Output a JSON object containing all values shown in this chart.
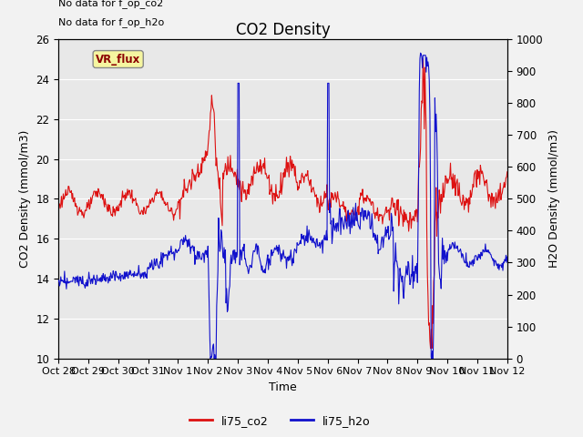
{
  "title": "CO2 Density",
  "xlabel": "Time",
  "ylabel_left": "CO2 Density (mmol/m3)",
  "ylabel_right": "H2O Density (mmol/m3)",
  "ylim_left": [
    10,
    26
  ],
  "ylim_right": [
    0,
    1000
  ],
  "yticks_left": [
    10,
    12,
    14,
    16,
    18,
    20,
    22,
    24,
    26
  ],
  "yticks_right": [
    0,
    100,
    200,
    300,
    400,
    500,
    600,
    700,
    800,
    900,
    1000
  ],
  "annotations": [
    "No data for f_op_co2",
    "No data for f_op_h2o"
  ],
  "vr_flux_label": "VR_flux",
  "legend": [
    {
      "label": "li75_co2",
      "color": "#dd1111"
    },
    {
      "label": "li75_h2o",
      "color": "#1111cc"
    }
  ],
  "background_color": "#e8e8e8",
  "grid_color": "#ffffff",
  "fig_background": "#f2f2f2",
  "title_fontsize": 12,
  "axis_fontsize": 9,
  "tick_fontsize": 8.5,
  "annot_fontsize": 8
}
